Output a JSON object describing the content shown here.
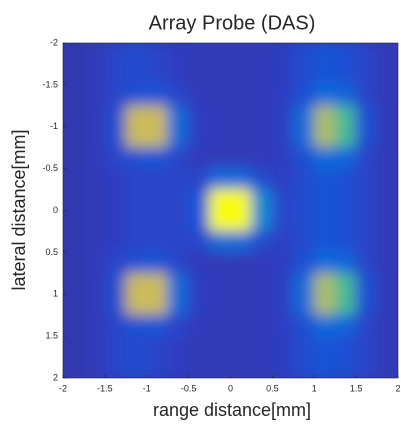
{
  "chart_data": {
    "type": "heatmap",
    "title": "Array Probe (DAS)",
    "x_label": "range distance[mm]",
    "y_label": "lateral distance[mm]",
    "x": [
      -1.875,
      -1.625,
      -1.375,
      -1.125,
      -0.875,
      -0.625,
      -0.375,
      -0.125,
      0.125,
      0.375,
      0.625,
      0.875,
      1.125,
      1.375,
      1.625,
      1.875
    ],
    "y": [
      -1.875,
      -1.625,
      -1.375,
      -1.125,
      -0.875,
      -0.625,
      -0.375,
      -0.125,
      0.125,
      0.375,
      0.625,
      0.875,
      1.125,
      1.375,
      1.625,
      1.875
    ],
    "z": [
      [
        0.08,
        0.1,
        0.15,
        0.18,
        0.15,
        0.12,
        0.1,
        0.1,
        0.1,
        0.1,
        0.12,
        0.18,
        0.22,
        0.2,
        0.15,
        0.1
      ],
      [
        0.08,
        0.1,
        0.15,
        0.18,
        0.15,
        0.12,
        0.1,
        0.1,
        0.1,
        0.1,
        0.12,
        0.18,
        0.22,
        0.2,
        0.15,
        0.1
      ],
      [
        0.08,
        0.1,
        0.15,
        0.2,
        0.22,
        0.15,
        0.1,
        0.1,
        0.1,
        0.1,
        0.12,
        0.2,
        0.3,
        0.28,
        0.15,
        0.1
      ],
      [
        0.08,
        0.1,
        0.18,
        0.85,
        0.85,
        0.3,
        0.12,
        0.1,
        0.1,
        0.1,
        0.12,
        0.3,
        0.8,
        0.65,
        0.2,
        0.1
      ],
      [
        0.08,
        0.1,
        0.18,
        0.85,
        0.85,
        0.3,
        0.12,
        0.1,
        0.1,
        0.1,
        0.12,
        0.3,
        0.8,
        0.65,
        0.2,
        0.1
      ],
      [
        0.08,
        0.1,
        0.15,
        0.2,
        0.22,
        0.15,
        0.1,
        0.1,
        0.1,
        0.1,
        0.12,
        0.2,
        0.3,
        0.28,
        0.15,
        0.1
      ],
      [
        0.08,
        0.1,
        0.12,
        0.15,
        0.15,
        0.15,
        0.15,
        0.3,
        0.3,
        0.18,
        0.12,
        0.18,
        0.22,
        0.2,
        0.15,
        0.1
      ],
      [
        0.08,
        0.1,
        0.12,
        0.15,
        0.15,
        0.15,
        0.22,
        1.0,
        1.0,
        0.4,
        0.15,
        0.18,
        0.22,
        0.2,
        0.15,
        0.1
      ],
      [
        0.08,
        0.1,
        0.12,
        0.15,
        0.15,
        0.15,
        0.22,
        1.0,
        1.0,
        0.4,
        0.15,
        0.18,
        0.22,
        0.2,
        0.15,
        0.1
      ],
      [
        0.08,
        0.1,
        0.12,
        0.15,
        0.15,
        0.15,
        0.15,
        0.3,
        0.3,
        0.18,
        0.12,
        0.18,
        0.22,
        0.2,
        0.15,
        0.1
      ],
      [
        0.08,
        0.1,
        0.15,
        0.2,
        0.22,
        0.15,
        0.1,
        0.1,
        0.1,
        0.1,
        0.12,
        0.2,
        0.3,
        0.28,
        0.15,
        0.1
      ],
      [
        0.08,
        0.1,
        0.18,
        0.85,
        0.85,
        0.3,
        0.12,
        0.1,
        0.1,
        0.1,
        0.12,
        0.3,
        0.8,
        0.65,
        0.2,
        0.1
      ],
      [
        0.08,
        0.1,
        0.18,
        0.85,
        0.85,
        0.3,
        0.12,
        0.1,
        0.1,
        0.1,
        0.12,
        0.3,
        0.8,
        0.65,
        0.2,
        0.1
      ],
      [
        0.08,
        0.1,
        0.15,
        0.2,
        0.22,
        0.15,
        0.1,
        0.1,
        0.1,
        0.1,
        0.12,
        0.2,
        0.3,
        0.28,
        0.15,
        0.1
      ],
      [
        0.08,
        0.1,
        0.15,
        0.18,
        0.15,
        0.12,
        0.1,
        0.1,
        0.1,
        0.1,
        0.12,
        0.18,
        0.22,
        0.2,
        0.15,
        0.1
      ],
      [
        0.08,
        0.1,
        0.15,
        0.18,
        0.15,
        0.12,
        0.1,
        0.1,
        0.1,
        0.1,
        0.12,
        0.18,
        0.22,
        0.2,
        0.15,
        0.1
      ]
    ],
    "zlim": [
      0,
      1
    ],
    "colormap": [
      "#352a87",
      "#2f3fc4",
      "#0f5cdd",
      "#1481d6",
      "#06a7c6",
      "#38b99e",
      "#92bf73",
      "#d9ba56",
      "#f9fb0e"
    ],
    "xlim": [
      -2,
      2
    ],
    "xticks": [
      -2,
      -1.5,
      -1,
      -0.5,
      0,
      0.5,
      1,
      1.5,
      2
    ],
    "ylim": [
      -2,
      2
    ],
    "yticks": [
      -2,
      -1.5,
      -1,
      -0.5,
      0,
      0.5,
      1,
      1.5,
      2
    ],
    "y_reversed": true
  }
}
